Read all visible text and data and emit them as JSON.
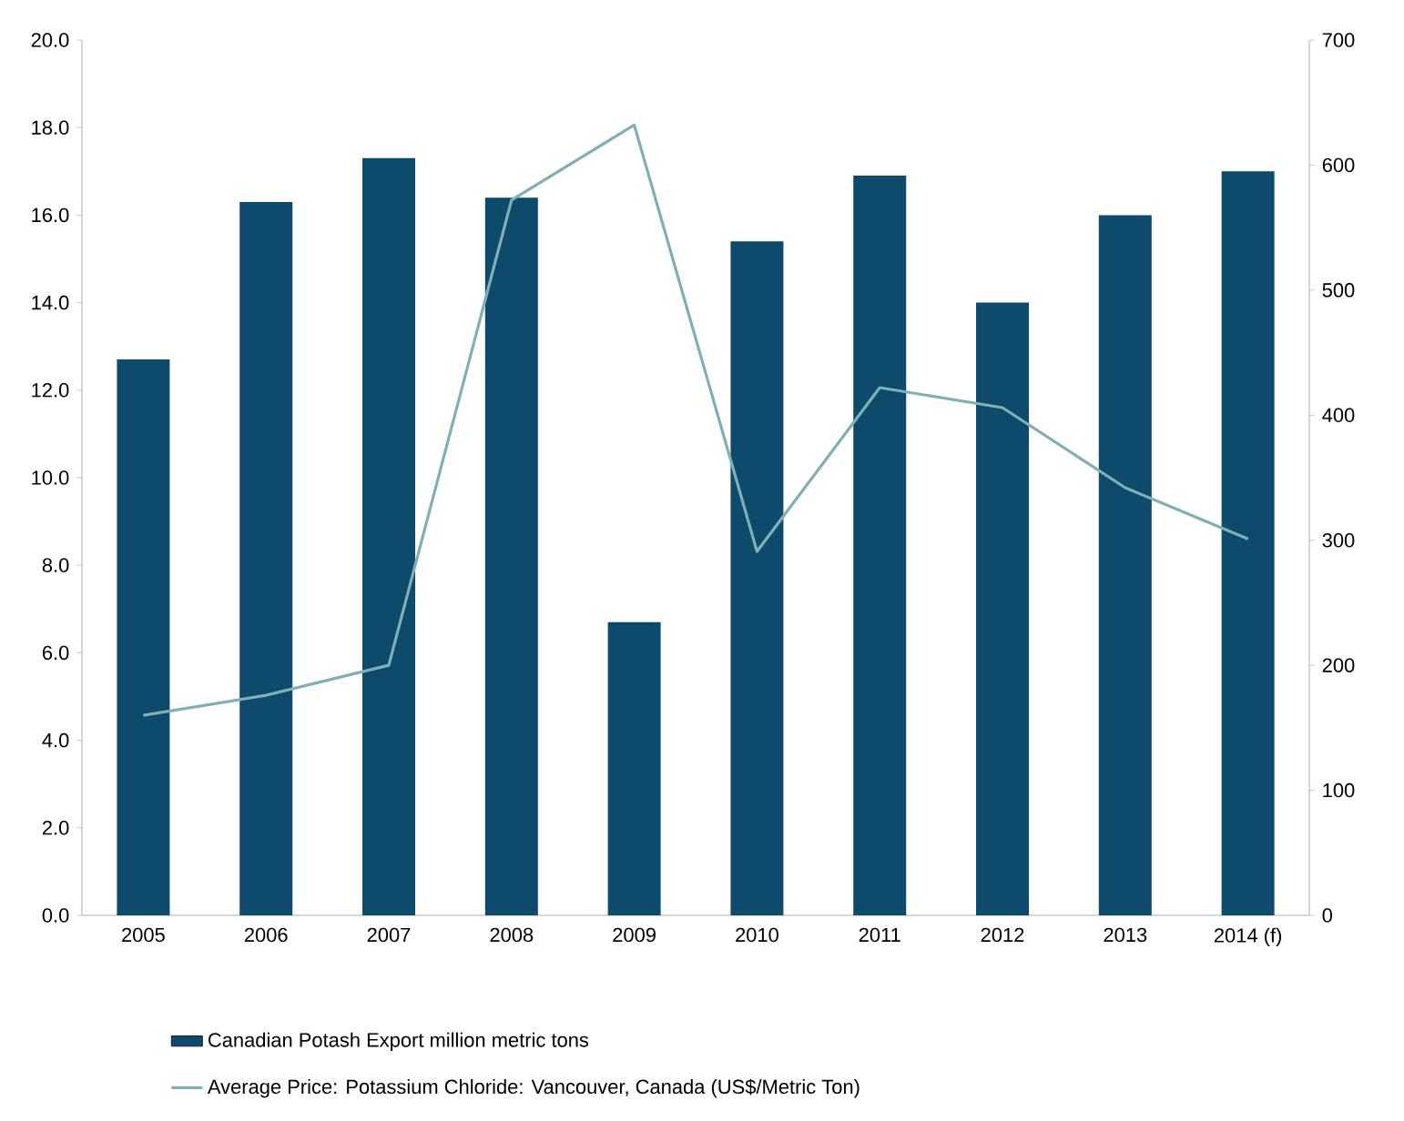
{
  "chart_data": {
    "type": "bar",
    "categories": [
      "2005",
      "2006",
      "2007",
      "2008",
      "2009",
      "2010",
      "2011",
      "2012",
      "2013",
      "2014 (f)"
    ],
    "series": [
      {
        "name": "Canadian Potash Export million metric tons",
        "type": "bar",
        "color": "#0d4a6b",
        "values": [
          12.7,
          16.3,
          17.3,
          16.4,
          6.7,
          15.4,
          16.9,
          14.0,
          16.0,
          17.0
        ]
      },
      {
        "name": "Average Price: Potassium Chloride: Vancouver, Canada (US$/Metric Ton)",
        "type": "line",
        "axis": "y2",
        "color": "#7fb0b5",
        "values": [
          160,
          176,
          200,
          572,
          632,
          291,
          422,
          406,
          342,
          301
        ]
      }
    ],
    "ylim": [
      0,
      20
    ],
    "yticks": [
      {
        "value": 0,
        "label": "0.0"
      },
      {
        "value": 2,
        "label": "2.0"
      },
      {
        "value": 4,
        "label": "4.0"
      },
      {
        "value": 6,
        "label": "6.0"
      },
      {
        "value": 8,
        "label": "8.0"
      },
      {
        "value": 10,
        "label": "10.0"
      },
      {
        "value": 12,
        "label": "12.0"
      },
      {
        "value": 14,
        "label": "14.0"
      },
      {
        "value": 16,
        "label": "16.0"
      },
      {
        "value": 18,
        "label": "18.0"
      },
      {
        "value": 20,
        "label": "20.0"
      }
    ],
    "y2lim": [
      0,
      700
    ],
    "y2ticks": [
      0,
      100,
      200,
      300,
      400,
      500,
      600,
      700
    ],
    "legend": "bottom"
  }
}
